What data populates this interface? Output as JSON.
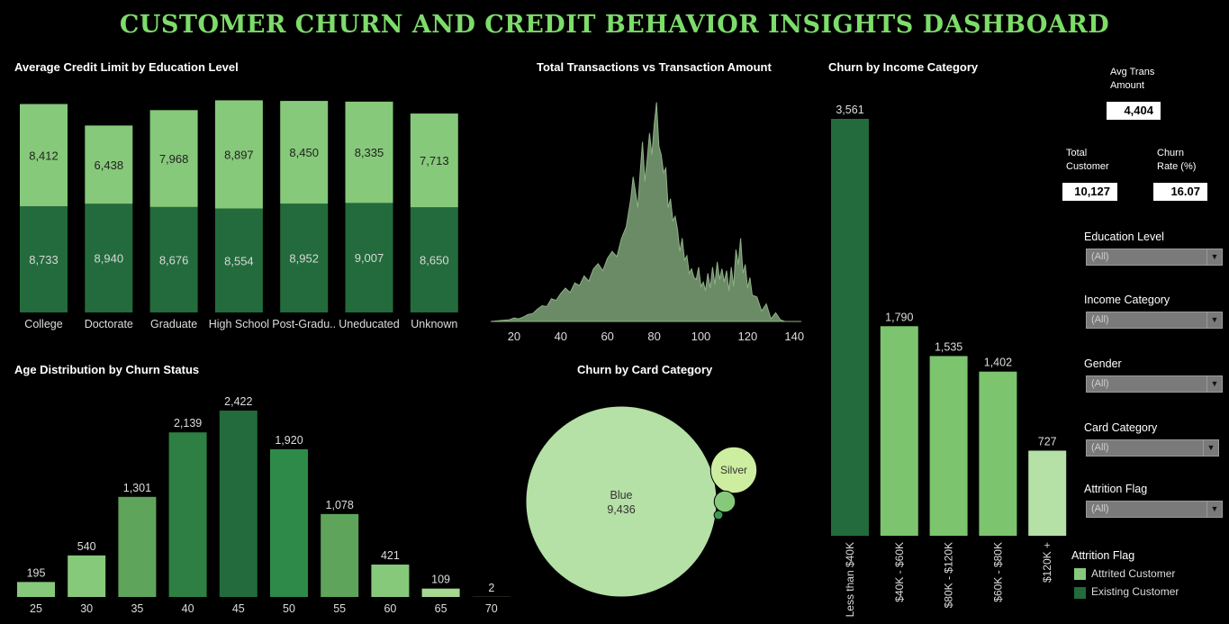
{
  "title": "CUSTOMER CHURN AND CREDIT BEHAVIOR INSIGHTS DASHBOARD",
  "colors": {
    "attrited": "#86c97a",
    "existing": "#236b3c",
    "title": "#7ddc6a",
    "area": "#6b8a66"
  },
  "kpis": {
    "avg_trans_label": "Avg Trans Amount",
    "avg_trans_value": "4,404",
    "total_customer_label": "Total Customer",
    "total_customer_value": "10,127",
    "churn_rate_label": "Churn Rate (%)",
    "churn_rate_value": "16.07"
  },
  "filters": [
    {
      "label": "Education Level",
      "value": "(All)"
    },
    {
      "label": "Income Category",
      "value": "(All)"
    },
    {
      "label": "Gender",
      "value": "(All)"
    },
    {
      "label": "Card Category",
      "value": "(All)"
    },
    {
      "label": "Attrition Flag",
      "value": "(All)"
    }
  ],
  "legend": {
    "title": "Attrition Flag",
    "items": [
      {
        "label": "Attrited Customer",
        "color": "#86c97a"
      },
      {
        "label": "Existing Customer",
        "color": "#236b3c"
      }
    ]
  },
  "chart_data": [
    {
      "id": "credit_limit",
      "type": "bar",
      "stacked": true,
      "title": "Average Credit Limit by Education Level",
      "categories": [
        "College",
        "Doctorate",
        "Graduate",
        "High School",
        "Post-Gradu..",
        "Uneducated",
        "Unknown"
      ],
      "series": [
        {
          "name": "Existing Customer",
          "values": [
            8733,
            8940,
            8676,
            8554,
            8952,
            9007,
            8650
          ],
          "labels": [
            "8,733",
            "8,940",
            "8,676",
            "8,554",
            "8,952",
            "9,007",
            "8,650"
          ]
        },
        {
          "name": "Attrited Customer",
          "values": [
            8412,
            6438,
            7968,
            8897,
            8450,
            8335,
            7713
          ],
          "labels": [
            "8,412",
            "6,438",
            "7,968",
            "8,897",
            "8,450",
            "8,335",
            "7,713"
          ]
        }
      ],
      "ylim": [
        0,
        18000
      ]
    },
    {
      "id": "transactions",
      "type": "area",
      "title": "Total Transactions vs Transaction Amount",
      "x_ticks": [
        20,
        40,
        60,
        80,
        100,
        120,
        140
      ],
      "xlim": [
        10,
        143
      ],
      "x": [
        10,
        14,
        18,
        20,
        22,
        24,
        26,
        28,
        30,
        32,
        34,
        36,
        38,
        40,
        42,
        44,
        46,
        48,
        50,
        52,
        54,
        56,
        58,
        60,
        62,
        64,
        66,
        68,
        70,
        71,
        72,
        73,
        74,
        75,
        76,
        77,
        78,
        79,
        80,
        81,
        82,
        83,
        84,
        85,
        86,
        87,
        88,
        89,
        90,
        91,
        92,
        93,
        94,
        95,
        96,
        97,
        98,
        99,
        100,
        101,
        102,
        103,
        104,
        105,
        106,
        107,
        108,
        109,
        110,
        111,
        112,
        113,
        114,
        115,
        116,
        117,
        118,
        119,
        120,
        121,
        122,
        124,
        126,
        128,
        130,
        132,
        134,
        136,
        138,
        140
      ],
      "y": [
        0,
        1,
        2,
        4,
        3,
        5,
        8,
        9,
        14,
        18,
        17,
        26,
        24,
        32,
        38,
        33,
        44,
        41,
        52,
        46,
        60,
        66,
        58,
        72,
        80,
        74,
        95,
        108,
        140,
        165,
        148,
        130,
        170,
        205,
        160,
        185,
        215,
        190,
        225,
        250,
        200,
        190,
        170,
        175,
        130,
        140,
        115,
        120,
        105,
        80,
        95,
        70,
        75,
        55,
        60,
        50,
        48,
        62,
        40,
        45,
        35,
        55,
        38,
        62,
        42,
        68,
        48,
        60,
        45,
        58,
        35,
        62,
        40,
        82,
        65,
        95,
        55,
        65,
        38,
        50,
        30,
        28,
        12,
        20,
        3,
        10,
        2,
        0,
        0,
        0
      ],
      "ylim": [
        0,
        260
      ]
    },
    {
      "id": "age",
      "type": "bar",
      "title": "Age Distribution by Churn Status",
      "categories": [
        "25",
        "30",
        "35",
        "40",
        "45",
        "50",
        "55",
        "60",
        "65",
        "70"
      ],
      "values": [
        195,
        540,
        1301,
        2139,
        2422,
        1920,
        1078,
        421,
        109,
        2
      ],
      "labels": [
        "195",
        "540",
        "1,301",
        "2,139",
        "2,422",
        "1,920",
        "1,078",
        "421",
        "109",
        "2"
      ],
      "ylim": [
        0,
        2700
      ]
    },
    {
      "id": "card",
      "type": "bubble",
      "title": "Churn by Card Category",
      "bubbles": [
        {
          "name": "Blue",
          "value": 9436,
          "label": "9,436"
        },
        {
          "name": "Silver",
          "value": 555,
          "label": ""
        },
        {
          "name": "",
          "value": 116,
          "label": ""
        },
        {
          "name": "",
          "value": 20,
          "label": ""
        }
      ]
    },
    {
      "id": "income",
      "type": "bar",
      "title": "Churn by Income Category",
      "categories": [
        "Less than $40K",
        "$40K - $60K",
        "$80K - $120K",
        "$60K - $80K",
        "$120K +"
      ],
      "values": [
        3561,
        1790,
        1535,
        1402,
        727
      ],
      "labels": [
        "3,561",
        "1,790",
        "1,535",
        "1,402",
        "727"
      ],
      "ylim": [
        0,
        3800
      ]
    }
  ]
}
